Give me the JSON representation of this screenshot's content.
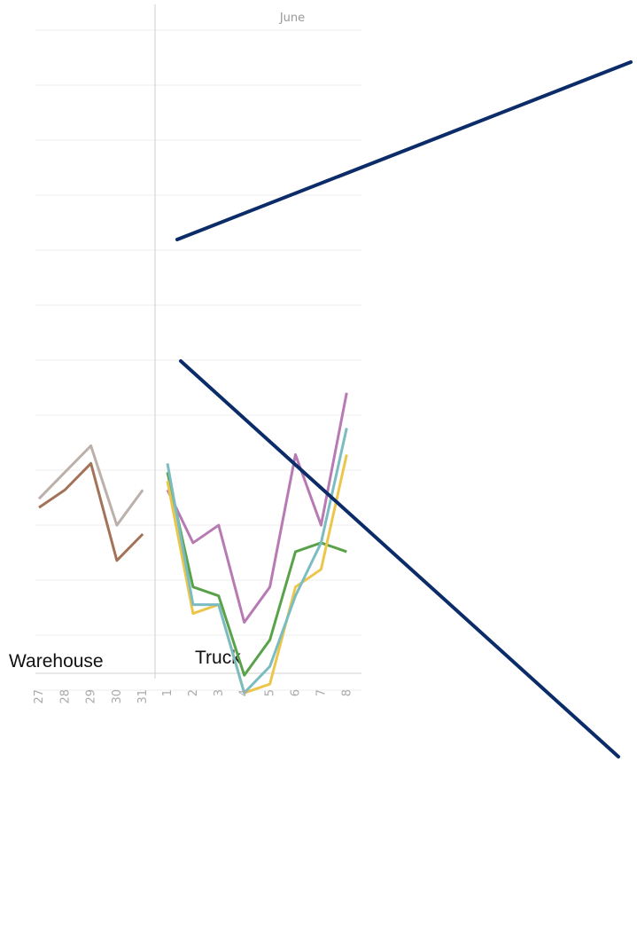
{
  "chart_data": {
    "type": "line",
    "month_label": "June",
    "sections": [
      {
        "label": "Warehouse",
        "x": [
          "27",
          "28",
          "29",
          "30",
          "31"
        ],
        "series": [
          {
            "color": "#bcb0aa",
            "values": [
              0.56,
              0.53,
              0.5,
              0.59,
              0.55
            ]
          },
          {
            "color": "#a27358",
            "values": [
              0.57,
              0.55,
              0.52,
              0.63,
              0.6
            ]
          }
        ]
      },
      {
        "label": "Truck",
        "x": [
          "1",
          "2",
          "3",
          "4",
          "5",
          "6",
          "7",
          "8"
        ],
        "series": [
          {
            "color": "#b77ab3",
            "values": [
              0.55,
              0.61,
              0.59,
              0.7,
              0.66,
              0.51,
              0.59,
              0.44
            ]
          },
          {
            "color": "#5aa24a",
            "values": [
              0.53,
              0.66,
              0.67,
              0.76,
              0.72,
              0.62,
              0.61,
              0.62
            ]
          },
          {
            "color": "#ecc64a",
            "values": [
              0.54,
              0.69,
              0.68,
              0.78,
              0.77,
              0.66,
              0.64,
              0.51
            ]
          },
          {
            "color": "#7bbcc3",
            "values": [
              0.52,
              0.68,
              0.68,
              0.78,
              0.75,
              0.67,
              0.61,
              0.48
            ]
          }
        ]
      }
    ],
    "ylim": [
      0,
      1
    ],
    "grid": true,
    "callout_color": "#0b2c68"
  }
}
